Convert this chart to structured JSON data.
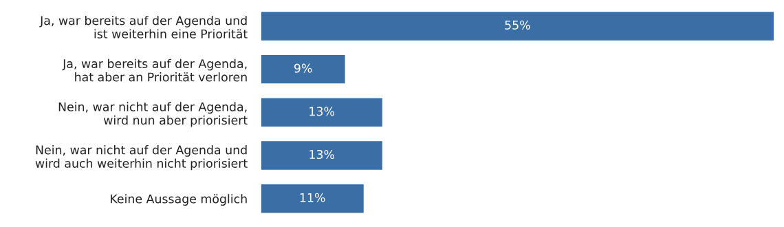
{
  "chart_data": {
    "type": "bar",
    "orientation": "horizontal",
    "categories": [
      "Ja, war bereits auf der Agenda und\nist weiterhin eine Priorität",
      "Ja, war bereits auf der Agenda,\nhat aber an Priorität verloren",
      "Nein, war nicht auf der Agenda,\nwird nun aber priorisiert",
      "Nein, war nicht auf der Agenda und\nwird auch weiterhin nicht priorisiert",
      "Keine Aussage möglich"
    ],
    "values": [
      55,
      9,
      13,
      13,
      11
    ],
    "value_labels": [
      "55%",
      "9%",
      "13%",
      "13%",
      "11%"
    ],
    "color": "#3a6ea5",
    "grid": false,
    "legend": false
  }
}
